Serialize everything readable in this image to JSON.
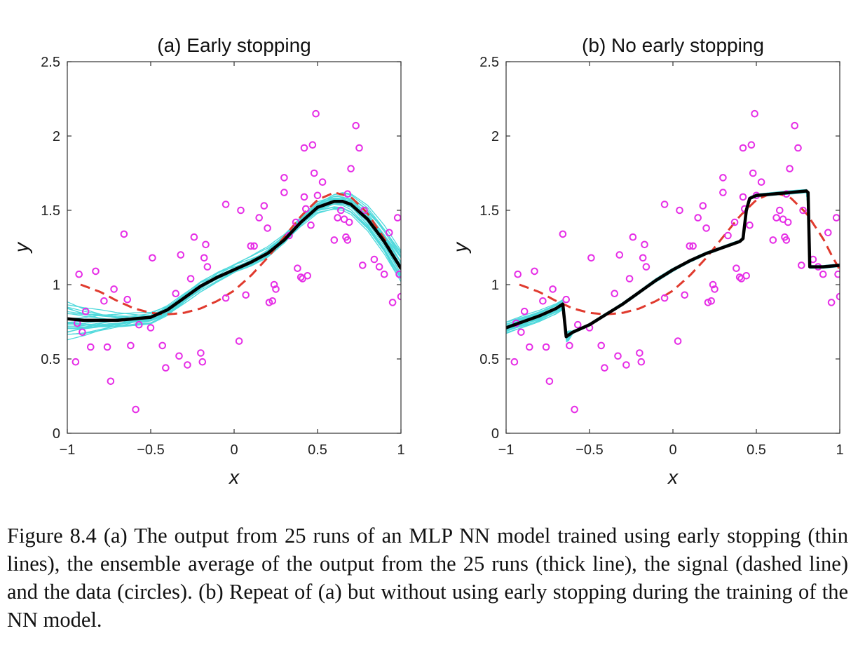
{
  "colors": {
    "ensemble_thin": "#4fd9dc",
    "ensemble_mean": "#000000",
    "signal": "#e03a2e",
    "data": "#e62ee6"
  },
  "chart_data": [
    {
      "type": "line",
      "title": "(a)  Early stopping",
      "xlabel": "x",
      "ylabel": "y",
      "xlim": [
        -1,
        1
      ],
      "ylim": [
        0,
        2.5
      ],
      "xticks": [
        -1,
        -0.5,
        0,
        0.5,
        1
      ],
      "xtick_labels": [
        "−1",
        "−0.5",
        "0",
        "0.5",
        "1"
      ],
      "yticks": [
        0,
        0.5,
        1,
        1.5,
        2,
        2.5
      ],
      "ytick_labels": [
        "0",
        "0.5",
        "1",
        "1.5",
        "2",
        "2.5"
      ],
      "grid": false,
      "signal": {
        "style": "dashed",
        "x": [
          -0.92,
          -0.8,
          -0.7,
          -0.6,
          -0.5,
          -0.4,
          -0.3,
          -0.2,
          -0.1,
          0,
          0.1,
          0.2,
          0.3,
          0.4,
          0.5,
          0.6,
          0.7,
          0.8,
          0.9,
          0.95,
          1
        ],
        "y": [
          1.0,
          0.95,
          0.89,
          0.84,
          0.81,
          0.8,
          0.81,
          0.84,
          0.89,
          0.96,
          1.06,
          1.18,
          1.32,
          1.46,
          1.57,
          1.62,
          1.59,
          1.48,
          1.31,
          1.2,
          1.1
        ]
      },
      "ensemble_mean": {
        "x": [
          -1,
          -0.9,
          -0.8,
          -0.7,
          -0.6,
          -0.5,
          -0.4,
          -0.3,
          -0.2,
          -0.1,
          0,
          0.1,
          0.2,
          0.3,
          0.4,
          0.5,
          0.6,
          0.65,
          0.7,
          0.8,
          0.9,
          1
        ],
        "y": [
          0.77,
          0.76,
          0.76,
          0.76,
          0.77,
          0.78,
          0.83,
          0.91,
          0.99,
          1.05,
          1.1,
          1.15,
          1.21,
          1.3,
          1.42,
          1.52,
          1.56,
          1.56,
          1.54,
          1.44,
          1.29,
          1.11
        ]
      },
      "ensemble_runs": 25,
      "data_points": {
        "x": [
          -0.94,
          -0.95,
          -0.93,
          -0.91,
          -0.89,
          -0.86,
          -0.83,
          -0.78,
          -0.76,
          -0.74,
          -0.72,
          -0.66,
          -0.64,
          -0.62,
          -0.59,
          -0.57,
          -0.5,
          -0.49,
          -0.43,
          -0.41,
          -0.35,
          -0.33,
          -0.32,
          -0.28,
          -0.26,
          -0.24,
          -0.2,
          -0.19,
          -0.18,
          -0.17,
          -0.16,
          -0.05,
          -0.05,
          0.03,
          0.04,
          0.07,
          0.1,
          0.12,
          0.15,
          0.18,
          0.2,
          0.21,
          0.23,
          0.24,
          0.25,
          0.3,
          0.3,
          0.33,
          0.37,
          0.38,
          0.4,
          0.41,
          0.42,
          0.42,
          0.43,
          0.44,
          0.46,
          0.47,
          0.48,
          0.49,
          0.5,
          0.53,
          0.6,
          0.62,
          0.64,
          0.66,
          0.67,
          0.68,
          0.68,
          0.69,
          0.7,
          0.73,
          0.75,
          0.77,
          0.78,
          0.84,
          0.87,
          0.9,
          0.93,
          0.95,
          0.98,
          0.99,
          1.0
        ],
        "y": [
          0.74,
          0.48,
          1.07,
          0.68,
          0.82,
          0.58,
          1.09,
          0.89,
          0.58,
          0.35,
          0.97,
          1.34,
          0.9,
          0.59,
          0.16,
          0.73,
          0.71,
          1.18,
          0.59,
          0.44,
          0.94,
          0.52,
          1.2,
          0.46,
          1.04,
          1.32,
          0.54,
          0.48,
          1.18,
          1.27,
          1.12,
          0.91,
          1.54,
          0.62,
          1.5,
          0.93,
          1.26,
          1.26,
          1.45,
          1.53,
          1.38,
          0.88,
          0.89,
          1.0,
          0.97,
          1.62,
          1.72,
          1.33,
          1.42,
          1.11,
          1.05,
          1.04,
          1.92,
          1.59,
          1.51,
          1.06,
          1.4,
          1.94,
          1.75,
          2.15,
          1.6,
          1.69,
          1.3,
          1.45,
          1.5,
          1.44,
          1.32,
          1.61,
          1.3,
          1.42,
          1.78,
          2.07,
          1.92,
          1.13,
          1.5,
          1.17,
          1.12,
          1.07,
          1.35,
          0.88,
          1.45,
          1.07,
          0.92
        ]
      }
    },
    {
      "type": "line",
      "title": "(b)  No early stopping",
      "xlabel": "x",
      "ylabel": "y",
      "xlim": [
        -1,
        1
      ],
      "ylim": [
        0,
        2.5
      ],
      "xticks": [
        -1,
        -0.5,
        0,
        0.5,
        1
      ],
      "xtick_labels": [
        "−1",
        "−0.5",
        "0",
        "0.5",
        "1"
      ],
      "yticks": [
        0,
        0.5,
        1,
        1.5,
        2,
        2.5
      ],
      "ytick_labels": [
        "0",
        "0.5",
        "1",
        "1.5",
        "2",
        "2.5"
      ],
      "grid": false,
      "signal": {
        "style": "dashed",
        "x": [
          -0.92,
          -0.8,
          -0.7,
          -0.6,
          -0.5,
          -0.4,
          -0.3,
          -0.2,
          -0.1,
          0,
          0.1,
          0.2,
          0.3,
          0.4,
          0.5,
          0.6,
          0.7,
          0.8,
          0.9,
          0.95,
          1
        ],
        "y": [
          1.0,
          0.95,
          0.89,
          0.84,
          0.81,
          0.8,
          0.81,
          0.84,
          0.89,
          0.96,
          1.06,
          1.18,
          1.32,
          1.46,
          1.57,
          1.62,
          1.59,
          1.48,
          1.31,
          1.2,
          1.1
        ]
      },
      "ensemble_mean": {
        "x": [
          -1,
          -0.9,
          -0.8,
          -0.7,
          -0.66,
          -0.64,
          -0.6,
          -0.5,
          -0.4,
          -0.3,
          -0.2,
          -0.1,
          0,
          0.1,
          0.2,
          0.3,
          0.35,
          0.4,
          0.42,
          0.44,
          0.46,
          0.5,
          0.6,
          0.7,
          0.8,
          0.81,
          0.82,
          0.84,
          0.9,
          1
        ],
        "y": [
          0.71,
          0.75,
          0.79,
          0.84,
          0.87,
          0.65,
          0.68,
          0.73,
          0.8,
          0.87,
          0.95,
          1.03,
          1.1,
          1.16,
          1.21,
          1.25,
          1.27,
          1.29,
          1.31,
          1.5,
          1.58,
          1.6,
          1.61,
          1.62,
          1.63,
          1.62,
          1.12,
          1.12,
          1.12,
          1.13
        ]
      },
      "ensemble_runs": 25,
      "data_points": {
        "x": [
          -0.94,
          -0.95,
          -0.93,
          -0.91,
          -0.89,
          -0.86,
          -0.83,
          -0.78,
          -0.76,
          -0.74,
          -0.72,
          -0.66,
          -0.64,
          -0.62,
          -0.59,
          -0.57,
          -0.5,
          -0.49,
          -0.43,
          -0.41,
          -0.35,
          -0.33,
          -0.32,
          -0.28,
          -0.26,
          -0.24,
          -0.2,
          -0.19,
          -0.18,
          -0.17,
          -0.16,
          -0.05,
          -0.05,
          0.03,
          0.04,
          0.07,
          0.1,
          0.12,
          0.15,
          0.18,
          0.2,
          0.21,
          0.23,
          0.24,
          0.25,
          0.3,
          0.3,
          0.33,
          0.37,
          0.38,
          0.4,
          0.41,
          0.42,
          0.42,
          0.43,
          0.44,
          0.46,
          0.47,
          0.48,
          0.49,
          0.5,
          0.53,
          0.6,
          0.62,
          0.64,
          0.66,
          0.67,
          0.68,
          0.68,
          0.69,
          0.7,
          0.73,
          0.75,
          0.77,
          0.78,
          0.84,
          0.87,
          0.9,
          0.93,
          0.95,
          0.98,
          0.99,
          1.0
        ],
        "y": [
          0.74,
          0.48,
          1.07,
          0.68,
          0.82,
          0.58,
          1.09,
          0.89,
          0.58,
          0.35,
          0.97,
          1.34,
          0.9,
          0.59,
          0.16,
          0.73,
          0.71,
          1.18,
          0.59,
          0.44,
          0.94,
          0.52,
          1.2,
          0.46,
          1.04,
          1.32,
          0.54,
          0.48,
          1.18,
          1.27,
          1.12,
          0.91,
          1.54,
          0.62,
          1.5,
          0.93,
          1.26,
          1.26,
          1.45,
          1.53,
          1.38,
          0.88,
          0.89,
          1.0,
          0.97,
          1.62,
          1.72,
          1.33,
          1.42,
          1.11,
          1.05,
          1.04,
          1.92,
          1.59,
          1.51,
          1.06,
          1.4,
          1.94,
          1.75,
          2.15,
          1.6,
          1.69,
          1.3,
          1.45,
          1.5,
          1.44,
          1.32,
          1.61,
          1.3,
          1.42,
          1.78,
          2.07,
          1.92,
          1.13,
          1.5,
          1.17,
          1.12,
          1.07,
          1.35,
          0.88,
          1.45,
          1.07,
          0.92
        ]
      }
    }
  ],
  "caption": "Figure 8.4 (a) The output from 25 runs of an MLP NN model trained using early stopping (thin lines), the ensemble average of the output from the 25 runs (thick line), the signal (dashed line) and the data (circles). (b) Repeat of (a) but without using early stopping during the training of the NN model."
}
